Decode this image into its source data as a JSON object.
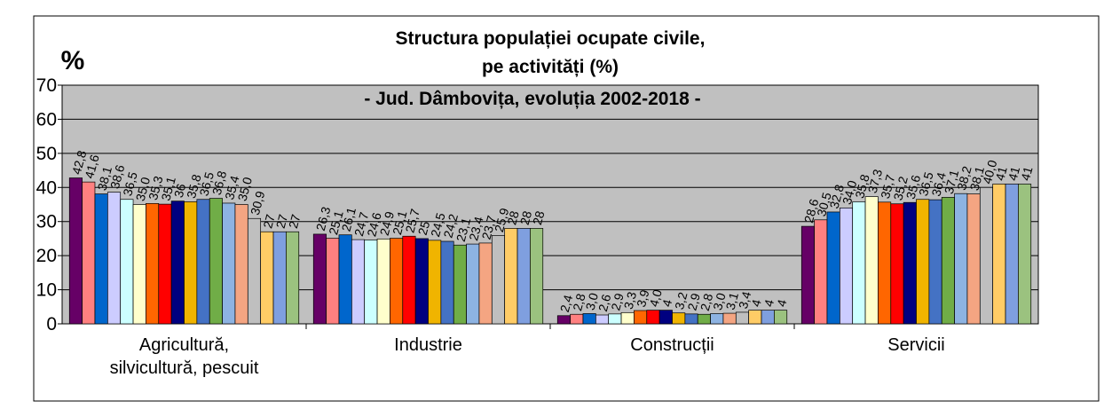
{
  "chart_data": {
    "type": "bar",
    "title": "Structura populației ocupate civile,",
    "subtitle": "pe activități (%)",
    "subtitle2": "- Jud. Dâmbovița, evoluția 2002-2018 -",
    "y_label": "%",
    "categories": [
      "Agricultură,\nsilvicultură, pescuit",
      "Industrie",
      "Construcții",
      "Servicii"
    ],
    "ylim": [
      0,
      70
    ],
    "yticks": [
      0,
      10,
      20,
      30,
      40,
      50,
      60,
      70
    ],
    "grid": true,
    "plot_background": "#c0c0c0",
    "series": [
      {
        "color": "#660066",
        "values": [
          42.8,
          26.3,
          2.4,
          28.6
        ],
        "value_labels": [
          "42,8",
          "26,3",
          "2,4",
          "28,6"
        ]
      },
      {
        "color": "#ff8080",
        "values": [
          41.6,
          25.1,
          2.8,
          30.5
        ],
        "value_labels": [
          "41,6",
          "25,1",
          "2,8",
          "30,5"
        ]
      },
      {
        "color": "#0066cc",
        "values": [
          38.1,
          26.1,
          3.0,
          32.8
        ],
        "value_labels": [
          "38,1",
          "26,1",
          "3,0",
          "32,8"
        ]
      },
      {
        "color": "#ccccff",
        "values": [
          38.6,
          24.7,
          2.6,
          34.0
        ],
        "value_labels": [
          "38,6",
          "24,7",
          "2,6",
          "34,0"
        ]
      },
      {
        "color": "#ccffff",
        "values": [
          36.5,
          24.6,
          2.9,
          35.8
        ],
        "value_labels": [
          "36,5",
          "24,6",
          "2,9",
          "35,8"
        ]
      },
      {
        "color": "#ffffcc",
        "values": [
          35.0,
          24.9,
          3.3,
          37.3
        ],
        "value_labels": [
          "35,0",
          "24,9",
          "3,3",
          "37,3"
        ]
      },
      {
        "color": "#ff6600",
        "values": [
          35.3,
          25.1,
          3.9,
          35.7
        ],
        "value_labels": [
          "35,3",
          "25,1",
          "3,9",
          "35,7"
        ]
      },
      {
        "color": "#ff0000",
        "values": [
          35.1,
          25.7,
          4.0,
          35.2
        ],
        "value_labels": [
          "35,1",
          "25,7",
          "4,0",
          "35,2"
        ]
      },
      {
        "color": "#000080",
        "values": [
          36,
          25,
          4,
          35.6
        ],
        "value_labels": [
          "36",
          "25",
          "4",
          "35,6"
        ]
      },
      {
        "color": "#f0b400",
        "values": [
          35.8,
          24.5,
          3.2,
          36.5
        ],
        "value_labels": [
          "35,8",
          "24,5",
          "3,2",
          "36,5"
        ]
      },
      {
        "color": "#4472c4",
        "values": [
          36.5,
          24.2,
          2.9,
          36.4
        ],
        "value_labels": [
          "36,5",
          "24,2",
          "2,9",
          "36,4"
        ]
      },
      {
        "color": "#70ad47",
        "values": [
          36.8,
          23.1,
          2.8,
          37.1
        ],
        "value_labels": [
          "36,8",
          "23,1",
          "2,8",
          "37,1"
        ]
      },
      {
        "color": "#8db3e2",
        "values": [
          35.4,
          23.4,
          3.0,
          38.2
        ],
        "value_labels": [
          "35,4",
          "23,4",
          "3,0",
          "38,2"
        ]
      },
      {
        "color": "#f4a582",
        "values": [
          35.0,
          23.7,
          3.1,
          38.1
        ],
        "value_labels": [
          "35,0",
          "23,7",
          "3,1",
          "38,1"
        ]
      },
      {
        "color": "#bfbfbf",
        "values": [
          30.9,
          25.9,
          3.4,
          40.0
        ],
        "value_labels": [
          "30,9",
          "25,9",
          "3,4",
          "40,0"
        ]
      },
      {
        "color": "#ffcc66",
        "values": [
          27,
          28,
          4,
          41
        ],
        "value_labels": [
          "27",
          "28",
          "4",
          "41"
        ]
      },
      {
        "color": "#7f9fdf",
        "values": [
          27,
          28,
          4,
          41
        ],
        "value_labels": [
          "27",
          "28",
          "4",
          "41"
        ]
      },
      {
        "color": "#9bc27f",
        "values": [
          27,
          28,
          4,
          41
        ],
        "value_labels": [
          "27",
          "28",
          "4",
          "41"
        ]
      }
    ]
  }
}
